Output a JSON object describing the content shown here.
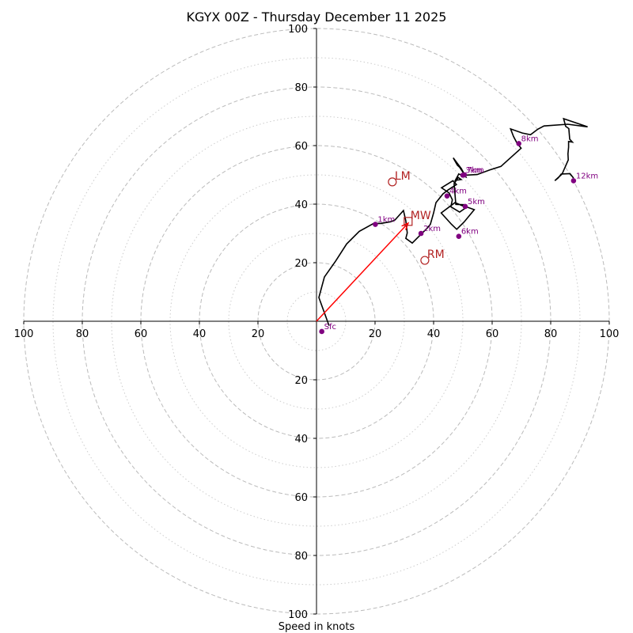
{
  "chart_data": {
    "type": "scatter",
    "chart_kind": "hodograph",
    "title": "KGYX 00Z - Thursday December 11 2025",
    "xlabel": "Speed in knots",
    "ylabel": "",
    "xlim": [
      -100,
      100
    ],
    "ylim": [
      -100,
      100
    ],
    "ring_major_knots": [
      20,
      40,
      60,
      80,
      100
    ],
    "ring_minor_knots": [
      10,
      30,
      50,
      70,
      90
    ],
    "x_tick_labels": [
      {
        "value": -100,
        "label": "100"
      },
      {
        "value": -80,
        "label": "80"
      },
      {
        "value": -60,
        "label": "60"
      },
      {
        "value": -40,
        "label": "40"
      },
      {
        "value": -20,
        "label": "20"
      },
      {
        "value": 20,
        "label": "20"
      },
      {
        "value": 40,
        "label": "40"
      },
      {
        "value": 60,
        "label": "60"
      },
      {
        "value": 80,
        "label": "80"
      },
      {
        "value": 100,
        "label": "100"
      }
    ],
    "y_tick_labels": [
      {
        "value": 100,
        "label": "100"
      },
      {
        "value": 80,
        "label": "80"
      },
      {
        "value": 60,
        "label": "60"
      },
      {
        "value": 40,
        "label": "40"
      },
      {
        "value": 20,
        "label": "20"
      },
      {
        "value": -20,
        "label": "20"
      },
      {
        "value": -40,
        "label": "40"
      },
      {
        "value": -60,
        "label": "60"
      },
      {
        "value": -80,
        "label": "80"
      },
      {
        "value": -100,
        "label": "100"
      }
    ],
    "hodograph_line": {
      "color": "#000000",
      "points": [
        [
          4.3,
          -1.5
        ],
        [
          0.8,
          8.1
        ],
        [
          2.7,
          15.1
        ],
        [
          6.5,
          20.5
        ],
        [
          10.3,
          26.4
        ],
        [
          14.6,
          30.7
        ],
        [
          19.5,
          33.4
        ],
        [
          21.9,
          33.4
        ],
        [
          25.4,
          34.0
        ],
        [
          26.8,
          34.6
        ],
        [
          29.7,
          37.8
        ],
        [
          30.5,
          34.3
        ],
        [
          31.0,
          30.2
        ],
        [
          30.5,
          28.3
        ],
        [
          32.7,
          26.7
        ],
        [
          35.7,
          29.7
        ],
        [
          37.8,
          31.8
        ],
        [
          38.9,
          33.1
        ],
        [
          40.0,
          37.0
        ],
        [
          40.8,
          40.5
        ],
        [
          43.2,
          43.5
        ],
        [
          44.9,
          44.8
        ],
        [
          47.8,
          46.7
        ],
        [
          46.6,
          48.0
        ],
        [
          42.7,
          45.6
        ],
        [
          45.3,
          43.8
        ],
        [
          46.4,
          41.5
        ],
        [
          45.9,
          39.1
        ],
        [
          48.9,
          37.3
        ],
        [
          51.2,
          38.9
        ],
        [
          47.3,
          40.5
        ],
        [
          42.6,
          37.0
        ],
        [
          46.1,
          33.1
        ],
        [
          47.9,
          31.4
        ],
        [
          50.4,
          33.9
        ],
        [
          53.9,
          38.1
        ],
        [
          51.4,
          39.0
        ],
        [
          50.5,
          39.8
        ],
        [
          47.6,
          39.9
        ],
        [
          47.0,
          47.0
        ],
        [
          48.4,
          49.1
        ],
        [
          49.4,
          48.4
        ],
        [
          47.4,
          48.1
        ],
        [
          48.6,
          50.3
        ],
        [
          51.0,
          49.3
        ],
        [
          49.5,
          52.1
        ],
        [
          46.7,
          55.8
        ],
        [
          48.1,
          53.3
        ],
        [
          48.9,
          52.6
        ],
        [
          50.7,
          49.9
        ],
        [
          54.9,
          50.1
        ],
        [
          59.2,
          51.7
        ],
        [
          63.0,
          52.9
        ],
        [
          69.9,
          59.1
        ],
        [
          68.5,
          60.8
        ],
        [
          67.3,
          63.1
        ],
        [
          66.3,
          65.7
        ],
        [
          70.3,
          64.3
        ],
        [
          73.1,
          63.7
        ],
        [
          75.6,
          65.6
        ],
        [
          77.7,
          66.7
        ],
        [
          85.8,
          67.3
        ],
        [
          92.6,
          66.4
        ],
        [
          84.4,
          69.2
        ],
        [
          85.1,
          66.6
        ],
        [
          86.2,
          65.8
        ],
        [
          86.5,
          62.2
        ],
        [
          87.4,
          61.2
        ],
        [
          86.1,
          61.4
        ],
        [
          86.1,
          59.5
        ],
        [
          85.9,
          57.2
        ],
        [
          86.0,
          55.1
        ],
        [
          83.9,
          50.3
        ],
        [
          81.4,
          48.0
        ],
        [
          82.6,
          49.0
        ],
        [
          83.6,
          50.3
        ],
        [
          86.6,
          50.4
        ],
        [
          87.8,
          48.9
        ]
      ]
    },
    "height_markers": {
      "color": "#800080",
      "points": [
        {
          "label": "Sfc",
          "u": 1.8,
          "v": -3.5
        },
        {
          "label": "1km",
          "u": 20.1,
          "v": 33.1
        },
        {
          "label": "2km",
          "u": 35.7,
          "v": 30.0
        },
        {
          "label": "3km",
          "u": 50.0,
          "v": 49.9
        },
        {
          "label": "7km",
          "u": 50.5,
          "v": 50.0
        },
        {
          "label": "4km",
          "u": 44.6,
          "v": 42.8
        },
        {
          "label": "5km",
          "u": 50.8,
          "v": 39.2
        },
        {
          "label": "6km",
          "u": 48.6,
          "v": 29.0
        },
        {
          "label": "8km",
          "u": 69.1,
          "v": 60.7
        },
        {
          "label": "12km",
          "u": 87.8,
          "v": 48.0
        }
      ]
    },
    "storm_motion": {
      "color": "#b22222",
      "markers": [
        {
          "label": "LM",
          "u": 25.9,
          "v": 47.6,
          "shape": "circle"
        },
        {
          "label": "MW",
          "u": 31.3,
          "v": 34.1,
          "shape": "square"
        },
        {
          "label": "RM",
          "u": 37.0,
          "v": 20.8,
          "shape": "circle"
        }
      ]
    },
    "shear_vector": {
      "color": "#ff0000",
      "from": [
        0.0,
        0.0
      ],
      "to": [
        31.3,
        33.5
      ]
    }
  }
}
